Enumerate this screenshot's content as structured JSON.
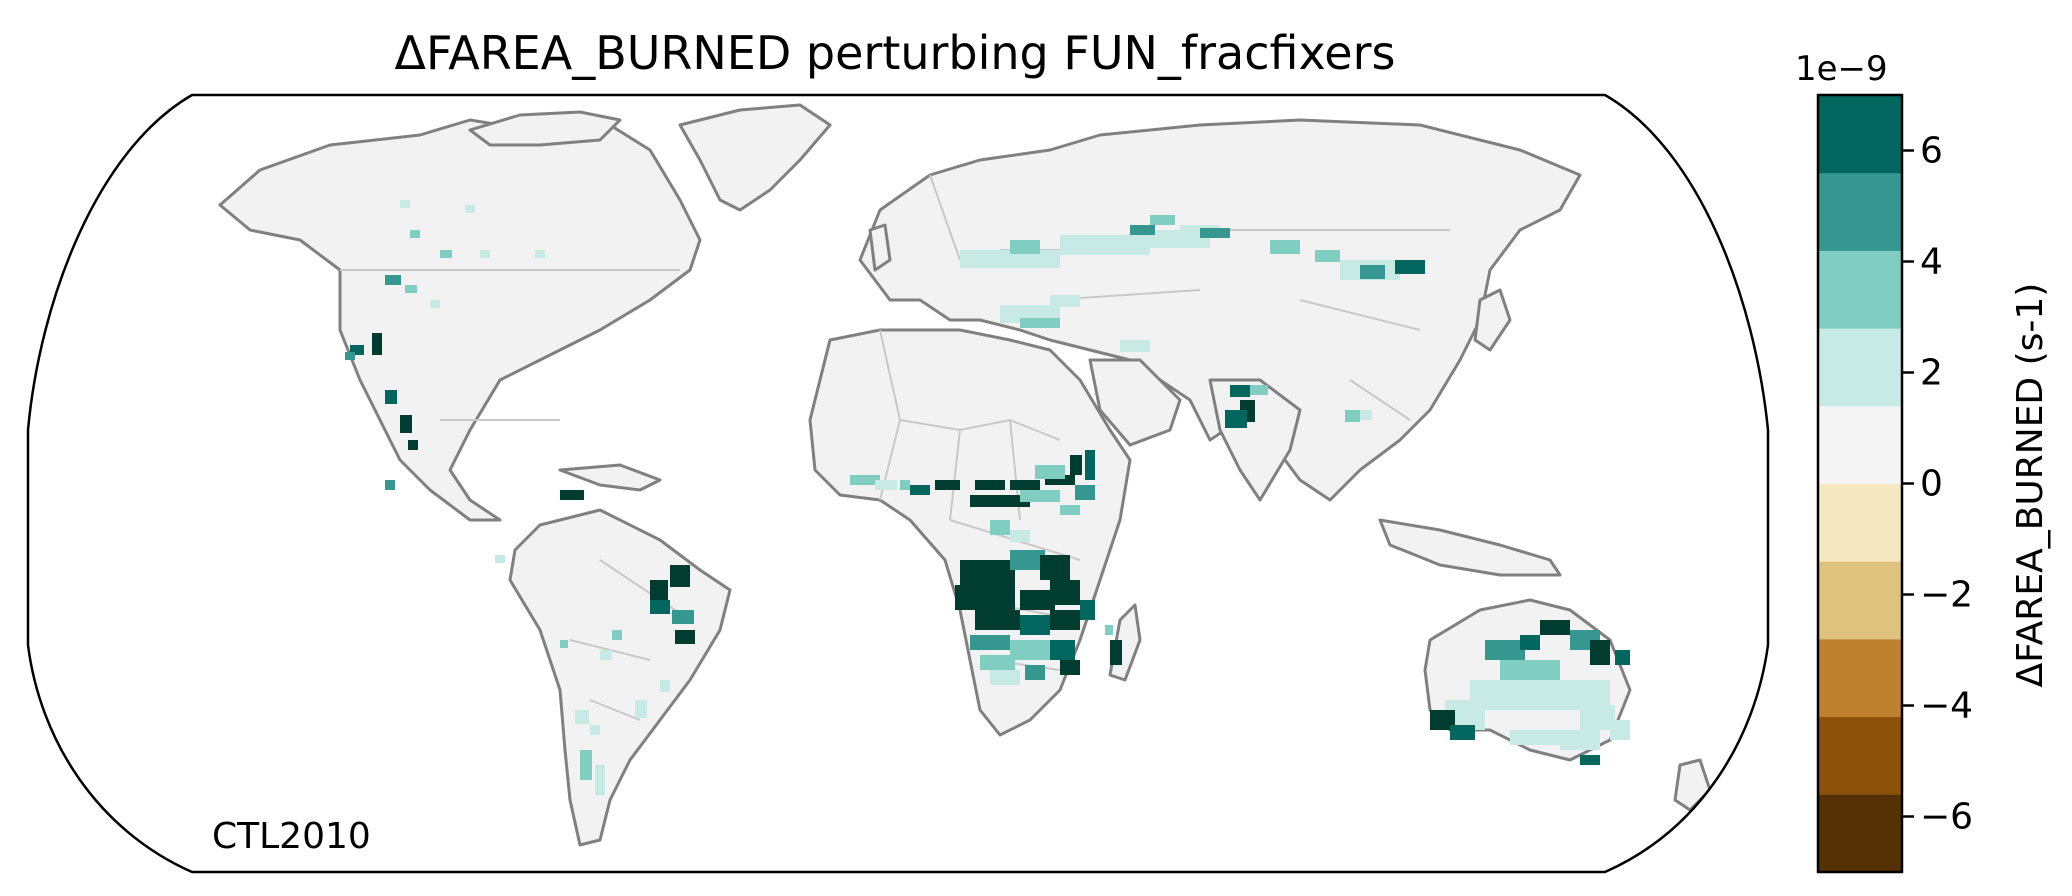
{
  "title": "ΔFAREA_BURNED perturbing FUN_fracfixers",
  "annotation": "CTL2010",
  "colorbar": {
    "label": "ΔFAREA_BURNED (s-1)",
    "exponent": "1e−9",
    "ticks": [
      {
        "value": 6,
        "label": "6"
      },
      {
        "value": 4,
        "label": "4"
      },
      {
        "value": 2,
        "label": "2"
      },
      {
        "value": 0,
        "label": "0"
      },
      {
        "value": -2,
        "label": "−2"
      },
      {
        "value": -4,
        "label": "−4"
      },
      {
        "value": -6,
        "label": "−6"
      }
    ],
    "range": [
      -7,
      7
    ],
    "levels": [
      -7,
      -5.6,
      -4.2,
      -2.8,
      -1.4,
      0,
      1.4,
      2.8,
      4.2,
      5.6,
      7
    ],
    "colors": [
      "#543005",
      "#8c510a",
      "#bf812d",
      "#dfc27d",
      "#f6e8c3",
      "#f5f5f5",
      "#c7eae5",
      "#80cdc1",
      "#35978f",
      "#01665e",
      "#003c30"
    ]
  },
  "map": {
    "projection": "Robinson",
    "background_land_color": "#f2f2f2",
    "coastline_color": "#808080",
    "border_color": "#c8c8c8"
  }
}
